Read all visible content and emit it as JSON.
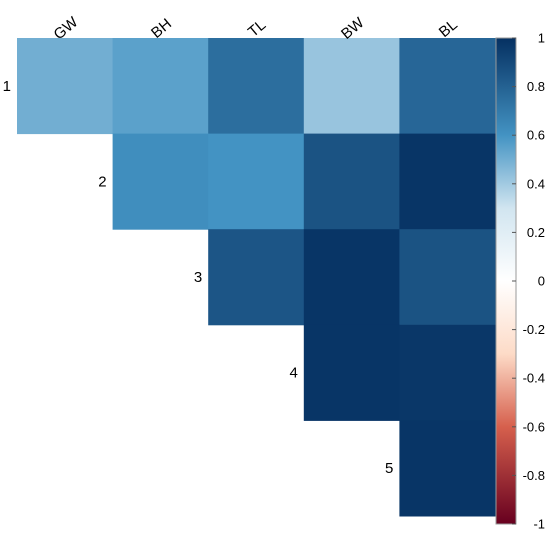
{
  "chart_data": {
    "type": "heatmap",
    "title": "",
    "columns": [
      "GW",
      "BH",
      "TL",
      "BW",
      "BL"
    ],
    "rows": [
      "1",
      "2",
      "3",
      "4",
      "5"
    ],
    "values": [
      [
        0.5,
        0.55,
        0.75,
        0.42,
        0.78
      ],
      [
        null,
        0.62,
        0.6,
        0.86,
        0.98
      ],
      [
        null,
        null,
        0.85,
        0.98,
        0.86
      ],
      [
        null,
        null,
        null,
        0.98,
        0.97
      ],
      [
        null,
        null,
        null,
        null,
        0.98
      ]
    ],
    "colorbar": {
      "range": [
        -1,
        1
      ],
      "ticks": [
        1,
        0.8,
        0.6,
        0.4,
        0.2,
        0,
        -0.2,
        -0.4,
        -0.6,
        -0.8,
        -1
      ],
      "tick_labels": [
        "1",
        "0.8",
        "0.6",
        "0.4",
        "0.2",
        "0",
        "-0.2",
        "-0.4",
        "-0.6",
        "-0.8",
        "-1"
      ],
      "colors": {
        "-1": "#67001f",
        "-0.6": "#d6604d",
        "-0.3": "#fddbc7",
        "0": "#ffffff",
        "0.3": "#d1e5f0",
        "0.6": "#4393c3",
        "1": "#053061"
      }
    },
    "legend_position": "right"
  }
}
